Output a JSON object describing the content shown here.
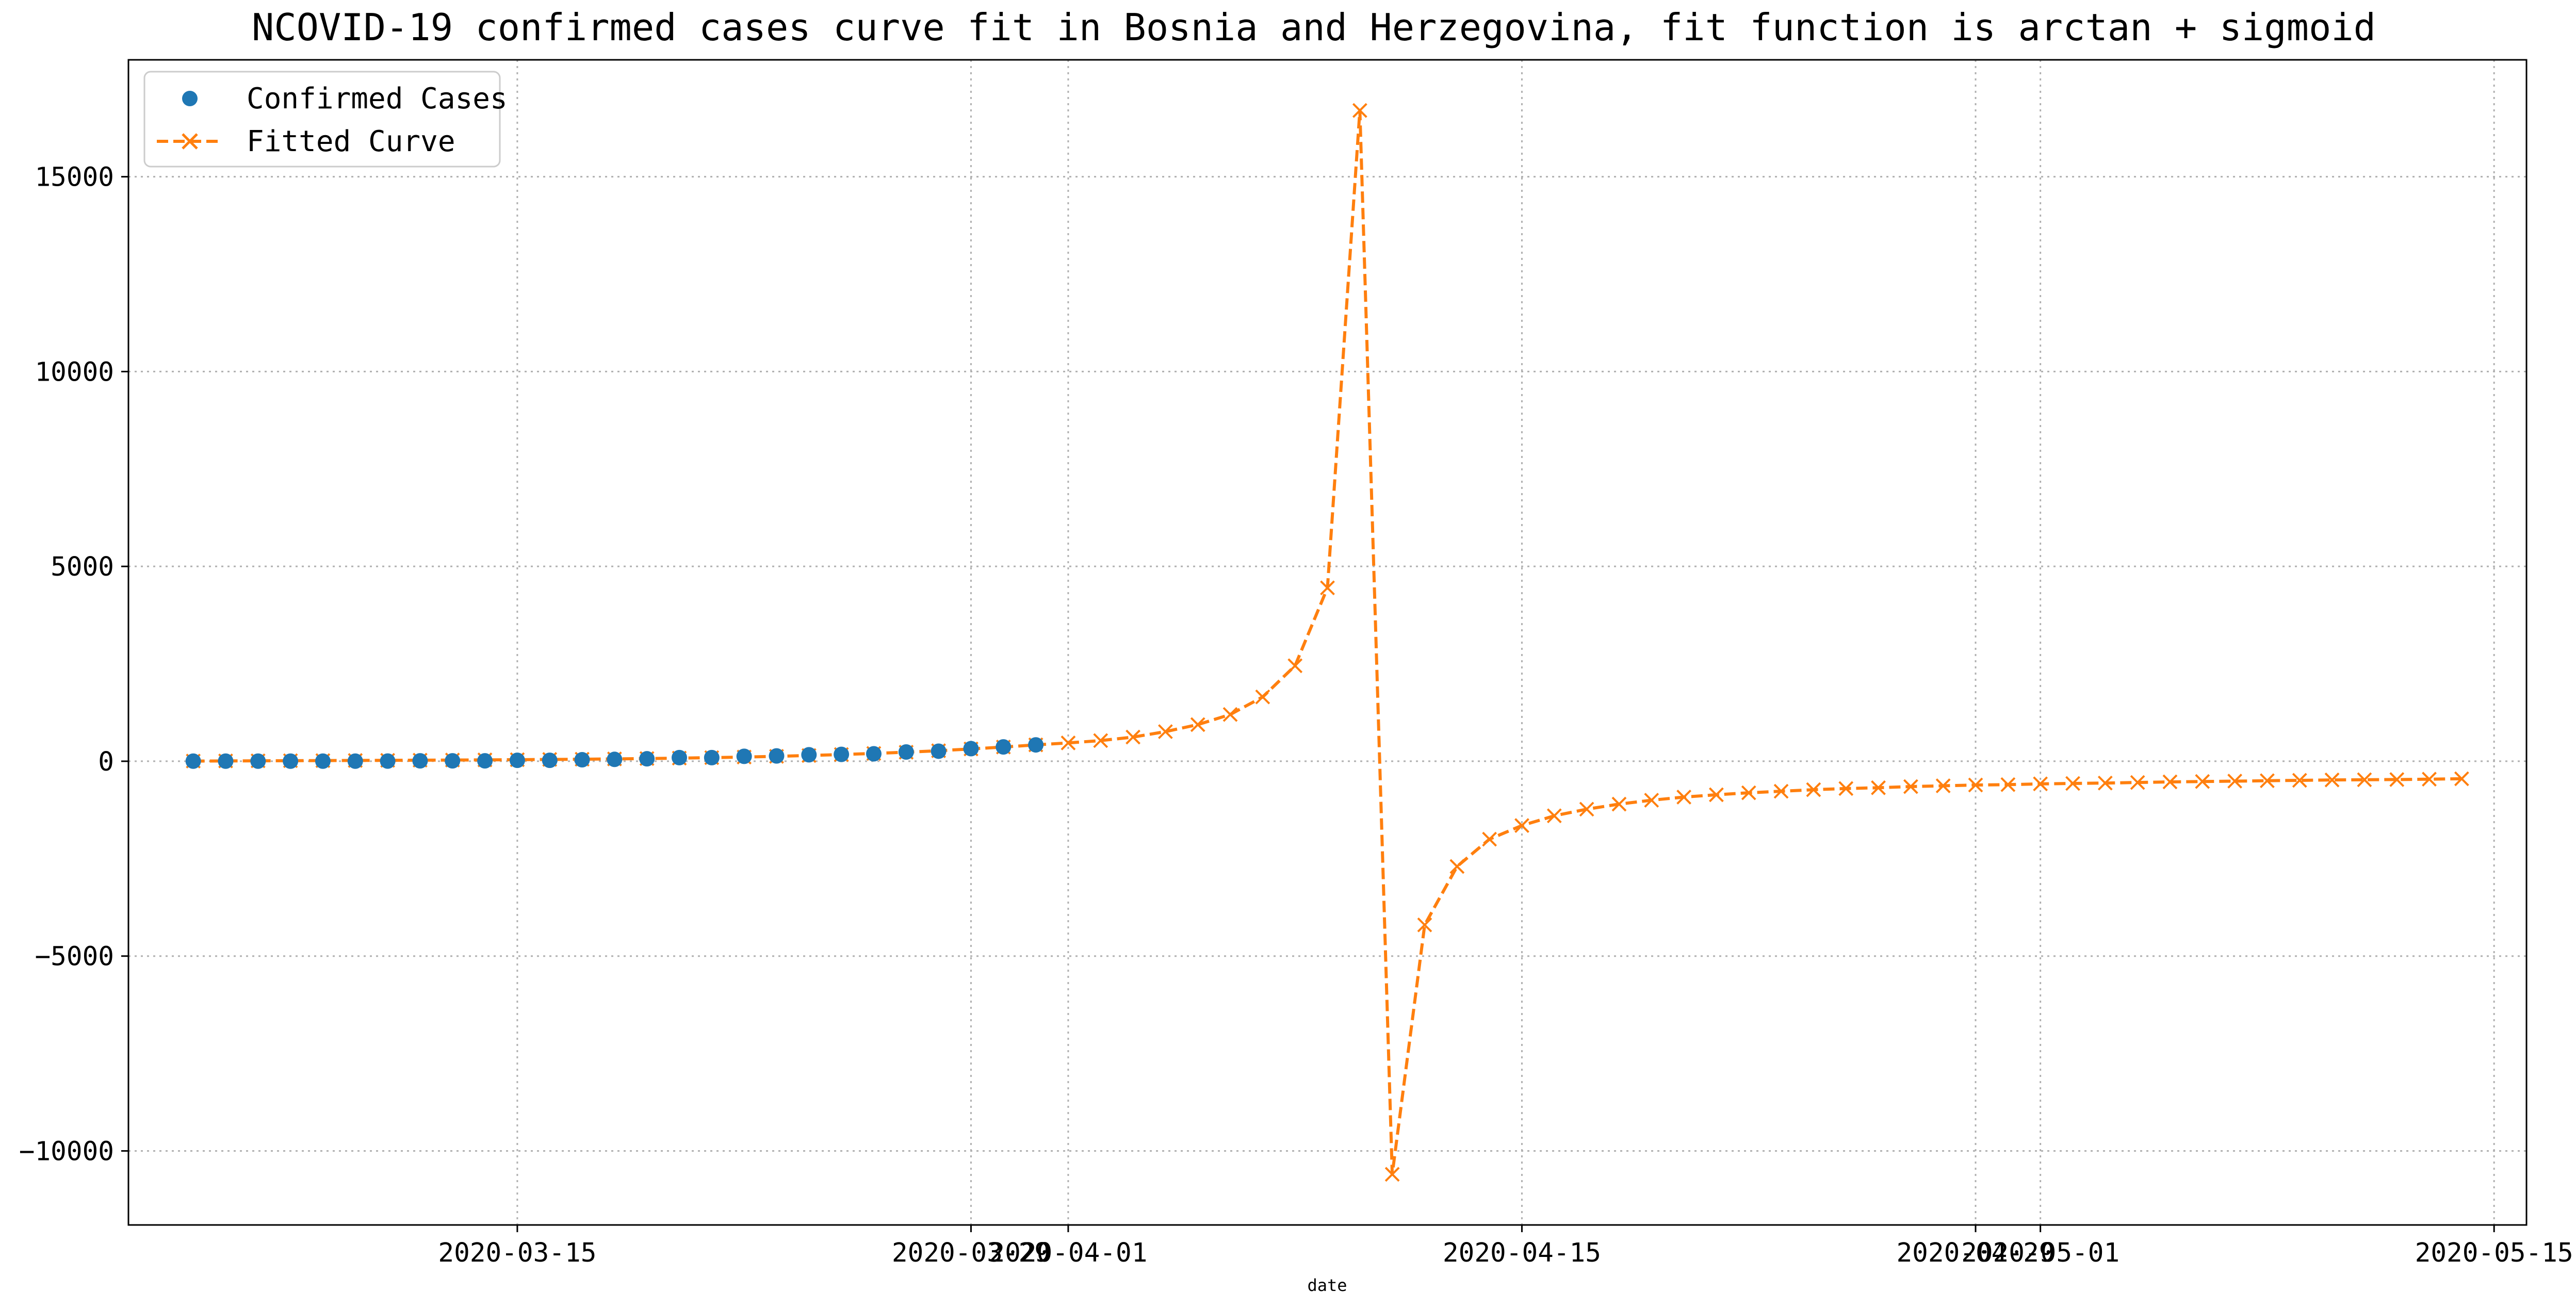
{
  "chart_data": {
    "type": "line",
    "title": "NCOVID-19 confirmed cases curve fit in Bosnia and Herzegovina, fit function is arctan + sigmoid",
    "xlabel": "date",
    "ylabel": "",
    "x_axis_type": "date",
    "xlim": [
      "2020-03-03",
      "2020-05-16"
    ],
    "ylim": [
      -11900,
      18000
    ],
    "grid": true,
    "grid_style": "dotted",
    "legend_position": "top-left",
    "x_ticks": [
      "2020-03-15",
      "2020-03-29",
      "2020-04-01",
      "2020-04-15",
      "2020-04-29",
      "2020-05-01",
      "2020-05-15"
    ],
    "x_tick_labels": [
      "2020-03-15",
      "2020-03-29",
      "2020-04-01",
      "2020-04-15",
      "2020-04-29",
      "2020-05-01",
      "2020-05-15"
    ],
    "y_ticks": [
      -10000,
      -5000,
      0,
      5000,
      10000,
      15000
    ],
    "y_tick_labels": [
      "−10000",
      "−5000",
      "0",
      "5000",
      "10000",
      "15000"
    ],
    "series": [
      {
        "name": "Confirmed Cases",
        "style": "markers",
        "marker": "circle",
        "color": "#1f77b4",
        "x": [
          "2020-03-05",
          "2020-03-06",
          "2020-03-07",
          "2020-03-08",
          "2020-03-09",
          "2020-03-10",
          "2020-03-11",
          "2020-03-12",
          "2020-03-13",
          "2020-03-14",
          "2020-03-15",
          "2020-03-16",
          "2020-03-17",
          "2020-03-18",
          "2020-03-19",
          "2020-03-20",
          "2020-03-21",
          "2020-03-22",
          "2020-03-23",
          "2020-03-24",
          "2020-03-25",
          "2020-03-26",
          "2020-03-27",
          "2020-03-28",
          "2020-03-29",
          "2020-03-30",
          "2020-03-31"
        ],
        "values": [
          2,
          3,
          3,
          3,
          3,
          3,
          4,
          11,
          11,
          11,
          24,
          24,
          38,
          48,
          63,
          93,
          93,
          126,
          136,
          166,
          176,
          191,
          237,
          258,
          323,
          368,
          420
        ]
      },
      {
        "name": "Fitted Curve",
        "style": "dashed-line",
        "marker": "x",
        "color": "#ff7f0e",
        "x": [
          "2020-03-05",
          "2020-03-06",
          "2020-03-07",
          "2020-03-08",
          "2020-03-09",
          "2020-03-10",
          "2020-03-11",
          "2020-03-12",
          "2020-03-13",
          "2020-03-14",
          "2020-03-15",
          "2020-03-16",
          "2020-03-17",
          "2020-03-18",
          "2020-03-19",
          "2020-03-20",
          "2020-03-21",
          "2020-03-22",
          "2020-03-23",
          "2020-03-24",
          "2020-03-25",
          "2020-03-26",
          "2020-03-27",
          "2020-03-28",
          "2020-03-29",
          "2020-03-30",
          "2020-03-31",
          "2020-04-01",
          "2020-04-02",
          "2020-04-03",
          "2020-04-04",
          "2020-04-05",
          "2020-04-06",
          "2020-04-07",
          "2020-04-08",
          "2020-04-09",
          "2020-04-10",
          "2020-04-11",
          "2020-04-12",
          "2020-04-13",
          "2020-04-14",
          "2020-04-15",
          "2020-04-16",
          "2020-04-17",
          "2020-04-18",
          "2020-04-19",
          "2020-04-20",
          "2020-04-21",
          "2020-04-22",
          "2020-04-23",
          "2020-04-24",
          "2020-04-25",
          "2020-04-26",
          "2020-04-27",
          "2020-04-28",
          "2020-04-29",
          "2020-04-30",
          "2020-05-01",
          "2020-05-02",
          "2020-05-03",
          "2020-05-04",
          "2020-05-05",
          "2020-05-06",
          "2020-05-07",
          "2020-05-08",
          "2020-05-09",
          "2020-05-10",
          "2020-05-11",
          "2020-05-12",
          "2020-05-13",
          "2020-05-14"
        ],
        "values": [
          5,
          8,
          11,
          14,
          17,
          20,
          23,
          27,
          31,
          35,
          40,
          46,
          52,
          60,
          69,
          80,
          93,
          108,
          126,
          147,
          172,
          200,
          232,
          270,
          315,
          365,
          420,
          470,
          530,
          620,
          760,
          940,
          1200,
          1650,
          2450,
          4450,
          16700,
          -10600,
          -4200,
          -2700,
          -2000,
          -1650,
          -1400,
          -1230,
          -1100,
          -1000,
          -920,
          -860,
          -810,
          -770,
          -730,
          -700,
          -680,
          -650,
          -630,
          -610,
          -600,
          -580,
          -570,
          -560,
          -545,
          -530,
          -520,
          -510,
          -500,
          -490,
          -480,
          -475,
          -470,
          -460,
          -450
        ]
      }
    ]
  },
  "legend": {
    "items": [
      {
        "label": "Confirmed Cases"
      },
      {
        "label": "Fitted Curve"
      }
    ]
  }
}
